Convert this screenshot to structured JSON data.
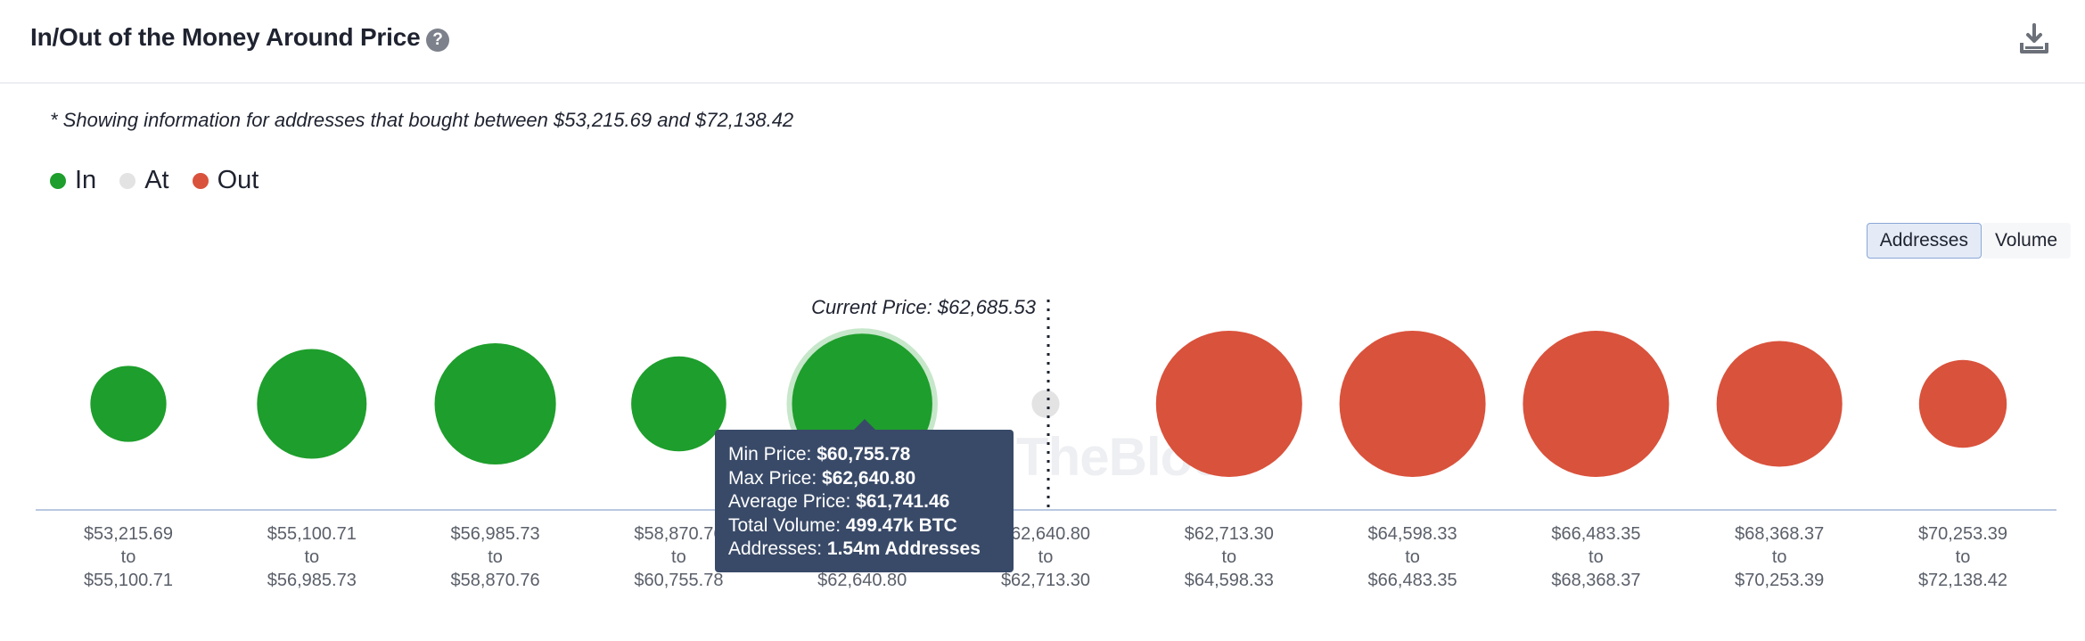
{
  "header": {
    "title": "In/Out of the Money Around Price",
    "help_icon": "question-circle-icon",
    "download_icon": "download-icon"
  },
  "note": "* Showing information for addresses that bought between $53,215.69 and $72,138.42",
  "legend": [
    {
      "label": "In",
      "color": "#1e9e2c"
    },
    {
      "label": "At",
      "color": "#e3e3e3"
    },
    {
      "label": "Out",
      "color": "#d9523c"
    }
  ],
  "toggle": {
    "addresses_label": "Addresses",
    "volume_label": "Volume",
    "active": "Addresses"
  },
  "watermark": "TheBlock",
  "current_price_label": "Current Price: $62,685.53",
  "tooltip": {
    "min_label": "Min Price:",
    "min_value": "$60,755.78",
    "max_label": "Max Price:",
    "max_value": "$62,640.80",
    "avg_label": "Average Price:",
    "avg_value": "$61,741.46",
    "vol_label": "Total Volume:",
    "vol_value": "499.47k BTC",
    "addr_label": "Addresses:",
    "addr_value": "1.54m Addresses"
  },
  "chart_data": {
    "type": "bubble",
    "current_price": 62685.53,
    "categories": [
      {
        "min": "$53,215.69",
        "max": "$55,100.71",
        "status": "In",
        "relative_size": 0.52
      },
      {
        "min": "$55,100.71",
        "max": "$56,985.73",
        "status": "In",
        "relative_size": 0.75
      },
      {
        "min": "$56,985.73",
        "max": "$58,870.76",
        "status": "In",
        "relative_size": 0.83
      },
      {
        "min": "$58,870.76",
        "max": "$60,755.78",
        "status": "In",
        "relative_size": 0.65
      },
      {
        "min": "$60,755.78",
        "max": "$62,640.80",
        "status": "In",
        "relative_size": 0.96
      },
      {
        "min": "$62,640.80",
        "max": "$62,713.30",
        "status": "At",
        "relative_size": 0.19
      },
      {
        "min": "$62,713.30",
        "max": "$64,598.33",
        "status": "Out",
        "relative_size": 1.0
      },
      {
        "min": "$64,598.33",
        "max": "$66,483.35",
        "status": "Out",
        "relative_size": 1.0
      },
      {
        "min": "$66,483.35",
        "max": "$68,368.37",
        "status": "Out",
        "relative_size": 1.0
      },
      {
        "min": "$68,368.37",
        "max": "$70,253.39",
        "status": "Out",
        "relative_size": 0.86
      },
      {
        "min": "$70,253.39",
        "max": "$72,138.42",
        "status": "Out",
        "relative_size": 0.6
      }
    ],
    "tick_connector": "to",
    "highlighted_index": 4
  }
}
